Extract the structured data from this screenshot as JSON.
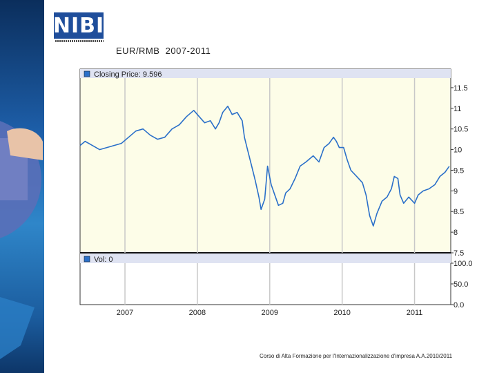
{
  "slide": {
    "title": "EUR/RMB  2007-2011",
    "logo_text": "NIBI",
    "footer": "Corso di Alta Formazione per l'Internazionalizzazione d'impresa A.A.2010/2011"
  },
  "chart_data": {
    "type": "line",
    "price_legend": "Closing Price: 9.596",
    "volume_legend": "Vol: 0",
    "x_ticks": [
      "2007",
      "2008",
      "2009",
      "2010",
      "2011"
    ],
    "x_tick_years": [
      2007.0,
      2008.0,
      2009.0,
      2010.0,
      2011.0
    ],
    "x_range": [
      2006.38,
      2011.5
    ],
    "price_axis": {
      "range": [
        7.5,
        11.75
      ],
      "ticks": [
        11.5,
        11,
        10.5,
        10,
        9.5,
        9,
        8.5,
        8,
        7.5
      ],
      "tick_labels": [
        "11.5",
        "11",
        "10.5",
        "10",
        "9.5",
        "9",
        "8.5",
        "8",
        "7.5"
      ]
    },
    "volume_axis": {
      "range": [
        0,
        100
      ],
      "ticks": [
        100,
        50,
        0
      ],
      "tick_labels": [
        "100.0",
        "50.0",
        "0.0"
      ]
    },
    "grid": true,
    "series": [
      {
        "name": "Closing Price",
        "color": "#2a6fc9",
        "points": [
          [
            2006.38,
            10.1
          ],
          [
            2006.45,
            10.2
          ],
          [
            2006.55,
            10.1
          ],
          [
            2006.65,
            10.0
          ],
          [
            2006.75,
            10.05
          ],
          [
            2006.85,
            10.1
          ],
          [
            2006.95,
            10.15
          ],
          [
            2007.05,
            10.3
          ],
          [
            2007.15,
            10.45
          ],
          [
            2007.25,
            10.5
          ],
          [
            2007.35,
            10.35
          ],
          [
            2007.45,
            10.25
          ],
          [
            2007.55,
            10.3
          ],
          [
            2007.65,
            10.5
          ],
          [
            2007.75,
            10.6
          ],
          [
            2007.85,
            10.8
          ],
          [
            2007.95,
            10.95
          ],
          [
            2008.05,
            10.75
          ],
          [
            2008.1,
            10.65
          ],
          [
            2008.18,
            10.7
          ],
          [
            2008.25,
            10.5
          ],
          [
            2008.3,
            10.65
          ],
          [
            2008.35,
            10.9
          ],
          [
            2008.42,
            11.05
          ],
          [
            2008.48,
            10.85
          ],
          [
            2008.55,
            10.9
          ],
          [
            2008.62,
            10.7
          ],
          [
            2008.65,
            10.3
          ],
          [
            2008.7,
            9.95
          ],
          [
            2008.75,
            9.6
          ],
          [
            2008.8,
            9.25
          ],
          [
            2008.85,
            8.85
          ],
          [
            2008.88,
            8.55
          ],
          [
            2008.93,
            8.8
          ],
          [
            2008.97,
            9.6
          ],
          [
            2009.02,
            9.15
          ],
          [
            2009.07,
            8.9
          ],
          [
            2009.12,
            8.65
          ],
          [
            2009.18,
            8.7
          ],
          [
            2009.22,
            8.95
          ],
          [
            2009.28,
            9.05
          ],
          [
            2009.35,
            9.3
          ],
          [
            2009.42,
            9.6
          ],
          [
            2009.5,
            9.7
          ],
          [
            2009.6,
            9.85
          ],
          [
            2009.68,
            9.7
          ],
          [
            2009.75,
            10.05
          ],
          [
            2009.82,
            10.15
          ],
          [
            2009.88,
            10.3
          ],
          [
            2009.92,
            10.2
          ],
          [
            2009.96,
            10.05
          ],
          [
            2010.02,
            10.05
          ],
          [
            2010.07,
            9.75
          ],
          [
            2010.12,
            9.5
          ],
          [
            2010.2,
            9.35
          ],
          [
            2010.28,
            9.2
          ],
          [
            2010.33,
            8.9
          ],
          [
            2010.38,
            8.4
          ],
          [
            2010.43,
            8.15
          ],
          [
            2010.48,
            8.45
          ],
          [
            2010.55,
            8.75
          ],
          [
            2010.62,
            8.85
          ],
          [
            2010.68,
            9.05
          ],
          [
            2010.72,
            9.35
          ],
          [
            2010.77,
            9.3
          ],
          [
            2010.8,
            8.9
          ],
          [
            2010.85,
            8.7
          ],
          [
            2010.92,
            8.85
          ],
          [
            2011.0,
            8.7
          ],
          [
            2011.05,
            8.9
          ],
          [
            2011.12,
            9.0
          ],
          [
            2011.2,
            9.05
          ],
          [
            2011.28,
            9.15
          ],
          [
            2011.35,
            9.35
          ],
          [
            2011.42,
            9.45
          ],
          [
            2011.48,
            9.596
          ]
        ]
      }
    ],
    "volume": []
  }
}
